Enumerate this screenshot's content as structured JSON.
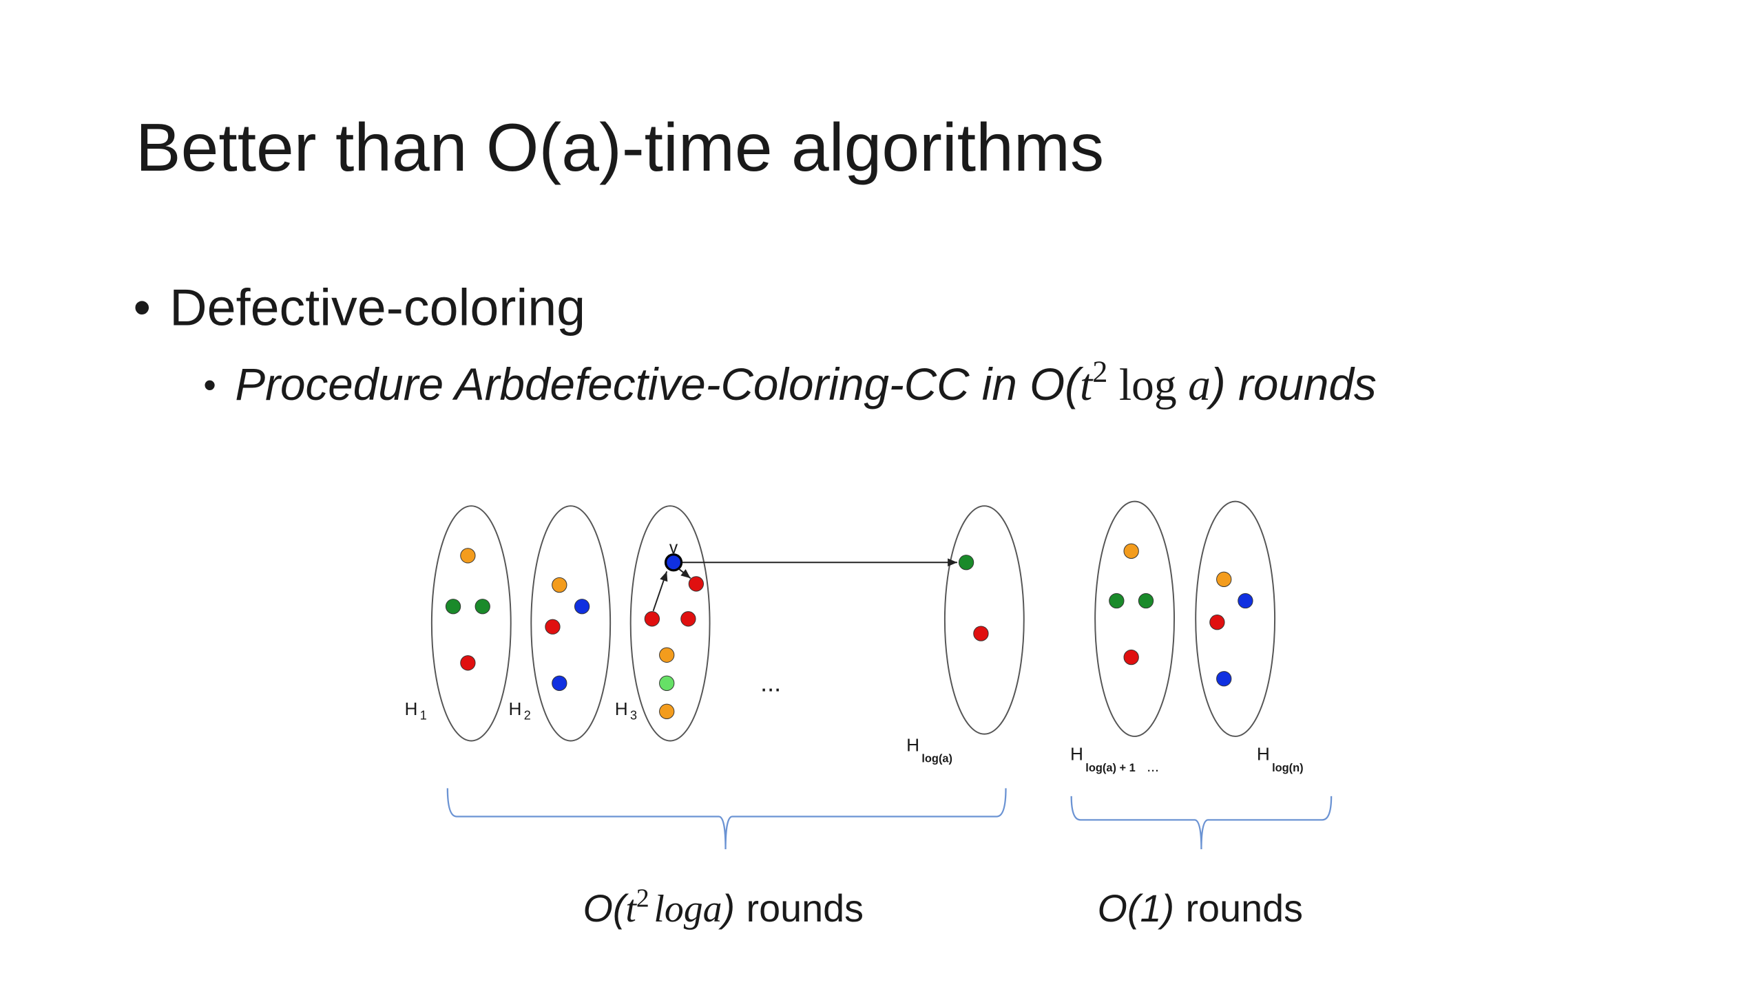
{
  "slide": {
    "title": "Better than O(a)-time algorithms",
    "bullets": [
      {
        "text": "Defective-coloring",
        "sub": {
          "text": "Procedure Arbdefective-Coloring-CC in O(",
          "var": "t",
          "sup": "2",
          "fn": "log",
          "arg": "a",
          "close": ") rounds"
        }
      }
    ],
    "diagram": {
      "vertex": "v",
      "ellipsis": "...",
      "labels": [
        {
          "base": "H",
          "sub": "1"
        },
        {
          "base": "H",
          "sub": "2"
        },
        {
          "base": "H",
          "sub": "3"
        },
        {
          "base": "H",
          "sub": "log(a)"
        },
        {
          "base": "H",
          "sub": "log(a) + 1",
          "after": "..."
        },
        {
          "base": "H",
          "sub": "log(n)"
        }
      ],
      "braces": [
        {
          "open": "O(",
          "var": "t",
          "sup": "2",
          "fn": "loga",
          "close": ")",
          "word": "rounds"
        },
        {
          "math": "O(1)",
          "word": "rounds"
        }
      ]
    }
  }
}
